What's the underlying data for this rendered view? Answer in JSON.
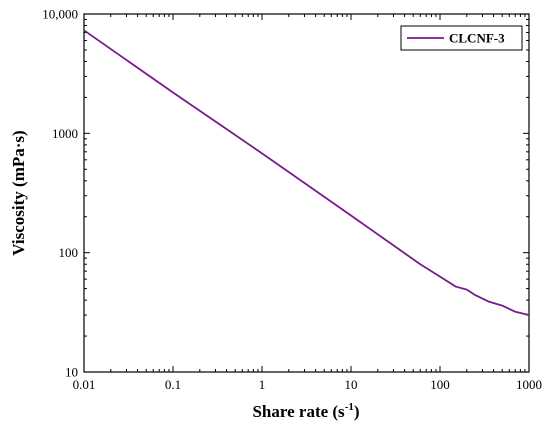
{
  "chart_data": {
    "type": "line",
    "xlabel": "Share rate (s",
    "xlabel_sup": "-1",
    "xlabel_end": ")",
    "ylabel": "Viscosity (mPa·s)",
    "x_scale": "log",
    "y_scale": "log",
    "xlim": [
      0.01,
      1000
    ],
    "ylim": [
      10,
      10000
    ],
    "x_ticks": [
      {
        "value": 0.01,
        "label": "0.01"
      },
      {
        "value": 0.1,
        "label": "0.1"
      },
      {
        "value": 1,
        "label": "1"
      },
      {
        "value": 10,
        "label": "10"
      },
      {
        "value": 100,
        "label": "100"
      },
      {
        "value": 1000,
        "label": "1000"
      }
    ],
    "y_ticks": [
      {
        "value": 10,
        "label": "10"
      },
      {
        "value": 100,
        "label": "100"
      },
      {
        "value": 1000,
        "label": "1000"
      },
      {
        "value": 10000,
        "label": "10,000"
      }
    ],
    "grid": false,
    "legend_position": "top-right",
    "series": [
      {
        "name": "CLCNF-3",
        "color": "#7B1A8C",
        "x": [
          0.01,
          0.1,
          1,
          10,
          30,
          60,
          100,
          150,
          200,
          250,
          350,
          500,
          700,
          1000
        ],
        "y": [
          7300,
          2200,
          680,
          205,
          115,
          80,
          63,
          52,
          49,
          44,
          39,
          36,
          32,
          30
        ]
      }
    ]
  }
}
